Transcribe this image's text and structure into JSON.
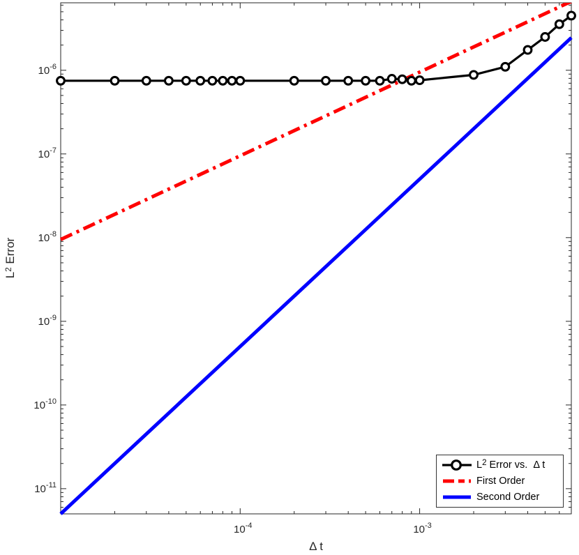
{
  "figure": {
    "background": "#ffffff",
    "axis_color": "#262626",
    "xlabel": {
      "text": "Δ t"
    },
    "ylabel": {
      "prefix": "L",
      "sup": "2",
      "suffix": " Error"
    }
  },
  "legend": {
    "border_color": "#333333",
    "entries": [
      {
        "prefix": "L",
        "sup": "2",
        "suffix": " Error vs.  Δ t",
        "color": "#000000",
        "line": "solid-circle"
      },
      {
        "prefix": "",
        "sup": "",
        "suffix": "First Order",
        "color": "#ff0000",
        "line": "dashdot"
      },
      {
        "prefix": "",
        "sup": "",
        "suffix": "Second Order",
        "color": "#0000ff",
        "line": "solid"
      }
    ]
  },
  "chart_data": {
    "type": "line",
    "title": "",
    "xlabel": "Δ t",
    "ylabel": "L^2 Error",
    "xscale": "log",
    "yscale": "log",
    "xlim": [
      1e-05,
      0.007
    ],
    "ylim": [
      5e-12,
      6.4e-06
    ],
    "grid": false,
    "legend_position": "inside-bottom-right",
    "x_major_ticks": [
      {
        "v": 0.0001,
        "exp": "-4"
      },
      {
        "v": 0.001,
        "exp": "-3"
      }
    ],
    "y_major_ticks": [
      {
        "v": 1e-06,
        "exp": "-6"
      },
      {
        "v": 1e-07,
        "exp": "-7"
      },
      {
        "v": 1e-08,
        "exp": "-8"
      },
      {
        "v": 1e-09,
        "exp": "-9"
      },
      {
        "v": 1e-10,
        "exp": "-10"
      },
      {
        "v": 1e-11,
        "exp": "-11"
      }
    ],
    "series": [
      {
        "name": "L^2 Error vs. Δt",
        "color": "#000000",
        "style": "solid",
        "marker": "circle",
        "linewidth": 3.2,
        "x": [
          1e-05,
          2e-05,
          3e-05,
          4e-05,
          5e-05,
          6e-05,
          7e-05,
          8e-05,
          9e-05,
          0.0001,
          0.0002,
          0.0003,
          0.0004,
          0.0005,
          0.0006,
          0.0007,
          0.0008,
          0.0009,
          0.001,
          0.002,
          0.003,
          0.004,
          0.005,
          0.006,
          0.007
        ],
        "y": [
          7.5e-07,
          7.5e-07,
          7.5e-07,
          7.5e-07,
          7.5e-07,
          7.5e-07,
          7.5e-07,
          7.5e-07,
          7.5e-07,
          7.5e-07,
          7.5e-07,
          7.5e-07,
          7.5e-07,
          7.5e-07,
          7.5e-07,
          7.9e-07,
          7.8e-07,
          7.5e-07,
          7.6e-07,
          8.8e-07,
          1.1e-06,
          1.75e-06,
          2.5e-06,
          3.55e-06,
          4.5e-06
        ]
      },
      {
        "name": "First Order",
        "color": "#ff0000",
        "style": "dashdot",
        "marker": "none",
        "linewidth": 5,
        "x": [
          1e-05,
          0.007
        ],
        "y": [
          9.5e-09,
          6.65e-06
        ]
      },
      {
        "name": "Second Order",
        "color": "#0000ff",
        "style": "solid",
        "marker": "none",
        "linewidth": 5,
        "x": [
          1e-05,
          0.007
        ],
        "y": [
          5e-12,
          2.45e-06
        ]
      }
    ]
  }
}
